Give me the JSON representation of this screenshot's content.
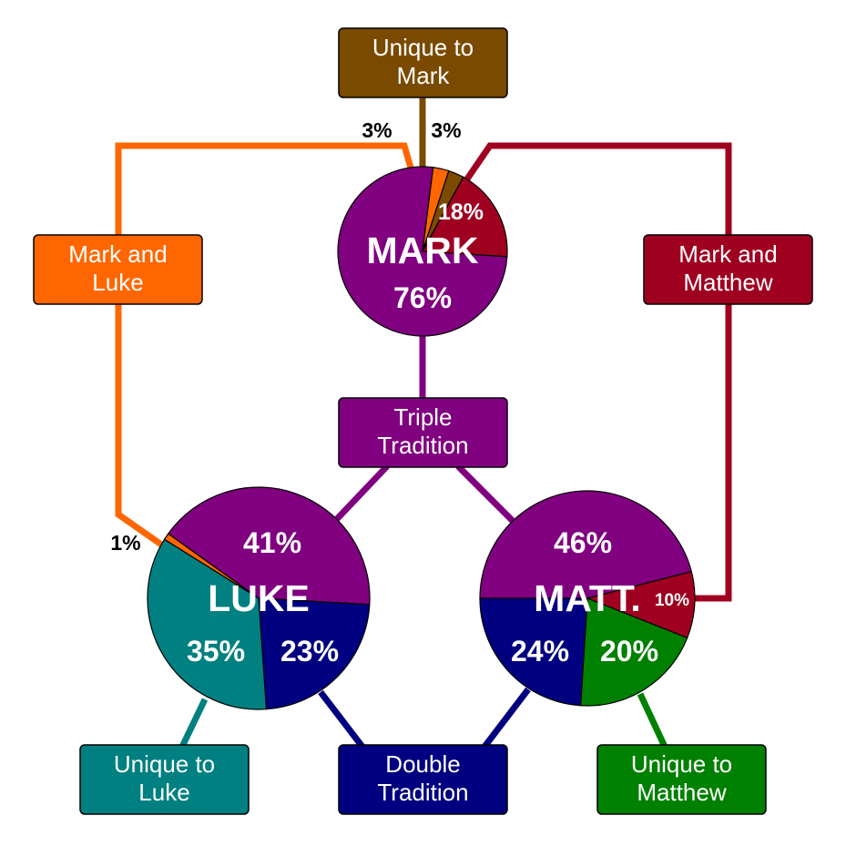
{
  "colors": {
    "triple": "#800080",
    "double": "#000080",
    "mark_luke": "#ff6600",
    "mark_matthew": "#a00020",
    "unique_mark": "#7a4a00",
    "unique_luke": "#008080",
    "unique_matthew": "#008000"
  },
  "boxes": {
    "unique_mark": {
      "line1": "Unique to",
      "line2": "Mark"
    },
    "mark_luke": {
      "line1": "Mark and",
      "line2": "Luke"
    },
    "mark_matthew": {
      "line1": "Mark and",
      "line2": "Matthew"
    },
    "triple": {
      "line1": "Triple",
      "line2": "Tradition"
    },
    "double": {
      "line1": "Double",
      "line2": "Tradition"
    },
    "unique_luke": {
      "line1": "Unique to",
      "line2": "Luke"
    },
    "unique_matthew": {
      "line1": "Unique to",
      "line2": "Matthew"
    }
  },
  "chart_data": [
    {
      "type": "pie",
      "title": "MARK",
      "slices": [
        {
          "category": "triple",
          "value": 76,
          "label": "76%"
        },
        {
          "category": "mark_matthew",
          "value": 18,
          "label": "18%"
        },
        {
          "category": "unique_mark",
          "value": 3,
          "label": "3%"
        },
        {
          "category": "mark_luke",
          "value": 3,
          "label": "3%"
        }
      ]
    },
    {
      "type": "pie",
      "title": "LUKE",
      "slices": [
        {
          "category": "triple",
          "value": 41,
          "label": "41%"
        },
        {
          "category": "double",
          "value": 23,
          "label": "23%"
        },
        {
          "category": "unique_luke",
          "value": 35,
          "label": "35%"
        },
        {
          "category": "mark_luke",
          "value": 1,
          "label": "1%"
        }
      ]
    },
    {
      "type": "pie",
      "title": "MATT.",
      "slices": [
        {
          "category": "triple",
          "value": 46,
          "label": "46%"
        },
        {
          "category": "mark_matthew",
          "value": 10,
          "label": "10%"
        },
        {
          "category": "unique_matthew",
          "value": 20,
          "label": "20%"
        },
        {
          "category": "double",
          "value": 24,
          "label": "24%"
        }
      ]
    }
  ]
}
